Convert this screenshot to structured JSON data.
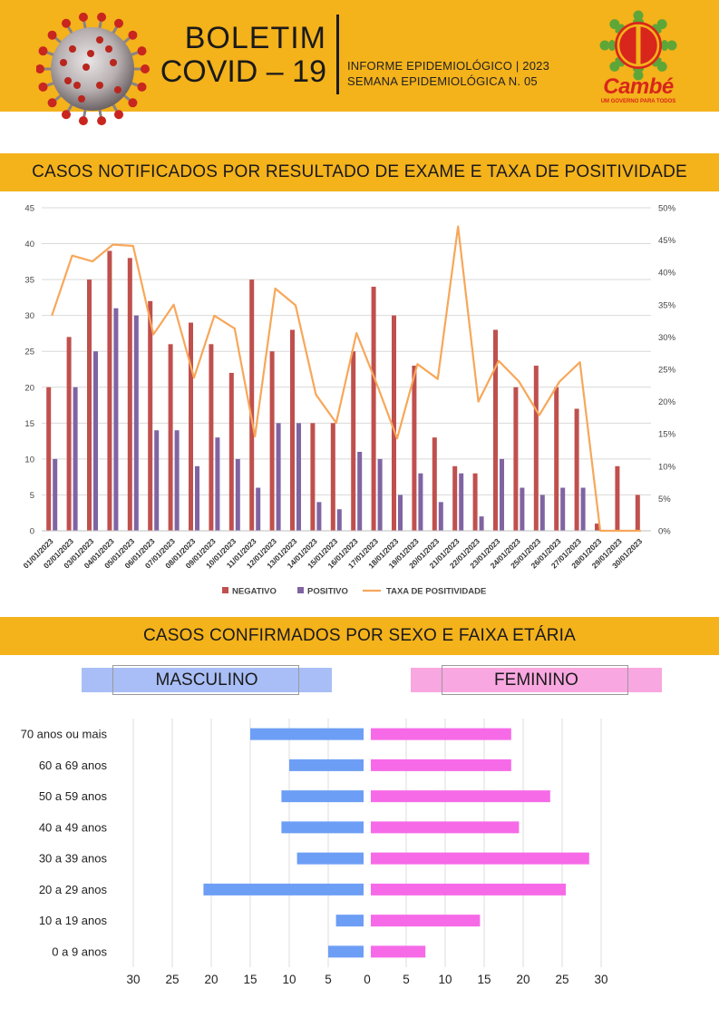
{
  "header": {
    "title_line1": "BOLETIM",
    "title_line2": "COVID – 19",
    "info_line1": "INFORME EPIDEMIOLÓGICO | 2023",
    "info_line2": "SEMANA EPIDEMIOLÓGICA  N. 05",
    "logo_text": "Cambé",
    "logo_slogan": "UM GOVERNO PARA TODOS"
  },
  "section1": {
    "title": "CASOS NOTIFICADOS POR RESULTADO DE EXAME E TAXA DE POSITIVIDADE"
  },
  "section2": {
    "title": "CASOS CONFIRMADOS POR SEXO E FAIXA ETÁRIA",
    "male_label": "MASCULINO",
    "female_label": "FEMININO"
  },
  "colors": {
    "header_bg": "#f4b21b",
    "negativo": "#c0504d",
    "positivo": "#8064a2",
    "taxa": "#f7a75a",
    "masculino_bar": "#6d9ef5",
    "feminino_bar": "#f66ae8"
  },
  "chart_data": [
    {
      "type": "bar",
      "categories": [
        "01/01/2023",
        "02/01/2023",
        "03/01/2023",
        "04/01/2023",
        "05/01/2023",
        "06/01/2023",
        "07/01/2023",
        "08/01/2023",
        "09/01/2023",
        "10/01/2023",
        "11/01/2023",
        "12/01/2023",
        "13/01/2023",
        "14/01/2023",
        "15/01/2023",
        "16/01/2023",
        "17/01/2023",
        "18/01/2023",
        "19/01/2023",
        "20/01/2023",
        "21/01/2023",
        "22/01/2023",
        "23/01/2023",
        "24/01/2023",
        "25/01/2023",
        "26/01/2023",
        "27/01/2023",
        "28/01/2023",
        "29/01/2023",
        "30/01/2023"
      ],
      "series": [
        {
          "name": "NEGATIVO",
          "values": [
            20,
            27,
            35,
            39,
            38,
            32,
            26,
            29,
            26,
            22,
            35,
            25,
            28,
            15,
            15,
            25,
            34,
            30,
            23,
            13,
            9,
            8,
            28,
            20,
            23,
            20,
            17,
            1,
            9,
            5
          ]
        },
        {
          "name": "POSITIVO",
          "values": [
            10,
            20,
            25,
            31,
            30,
            14,
            14,
            9,
            13,
            10,
            6,
            15,
            15,
            4,
            3,
            11,
            10,
            5,
            8,
            4,
            8,
            2,
            10,
            6,
            5,
            6,
            6,
            0,
            0,
            0
          ]
        },
        {
          "name": "TAXA DE POSITIVIDADE",
          "axis": "right",
          "chart_type": "line",
          "values": [
            33.3,
            42.6,
            41.7,
            44.3,
            44.1,
            30.4,
            35.0,
            23.7,
            33.3,
            31.3,
            14.6,
            37.5,
            34.9,
            21.1,
            16.7,
            30.6,
            22.7,
            14.3,
            25.8,
            23.5,
            47.1,
            20.0,
            26.3,
            23.1,
            17.9,
            23.1,
            26.1,
            0,
            0,
            0
          ]
        }
      ],
      "ylim": [
        0,
        45
      ],
      "yticks": [
        0,
        5,
        10,
        15,
        20,
        25,
        30,
        35,
        40,
        45
      ],
      "y2lim": [
        0,
        50
      ],
      "y2ticks": [
        "0%",
        "5%",
        "10%",
        "15%",
        "20%",
        "25%",
        "30%",
        "35%",
        "40%",
        "45%",
        "50%"
      ],
      "grid": true,
      "legend": "bottom"
    },
    {
      "type": "bar",
      "orientation": "horizontal",
      "categories": [
        "70 anos ou mais",
        "60 a 69 anos",
        "50 a 59 anos",
        "40 a 49 anos",
        "30 a 39 anos",
        "20 a 29 anos",
        "10 a 19 anos",
        "0 a 9 anos"
      ],
      "series": [
        {
          "name": "MASCULINO",
          "values": [
            15,
            10,
            11,
            11,
            9,
            21,
            4,
            5
          ]
        },
        {
          "name": "FEMININO",
          "values": [
            18,
            18,
            23,
            19,
            28,
            25,
            14,
            7
          ]
        }
      ],
      "xticks": [
        30,
        25,
        20,
        15,
        10,
        5,
        0,
        5,
        10,
        15,
        20,
        25,
        30
      ],
      "xlim": [
        -30,
        30
      ],
      "grid": true
    }
  ]
}
